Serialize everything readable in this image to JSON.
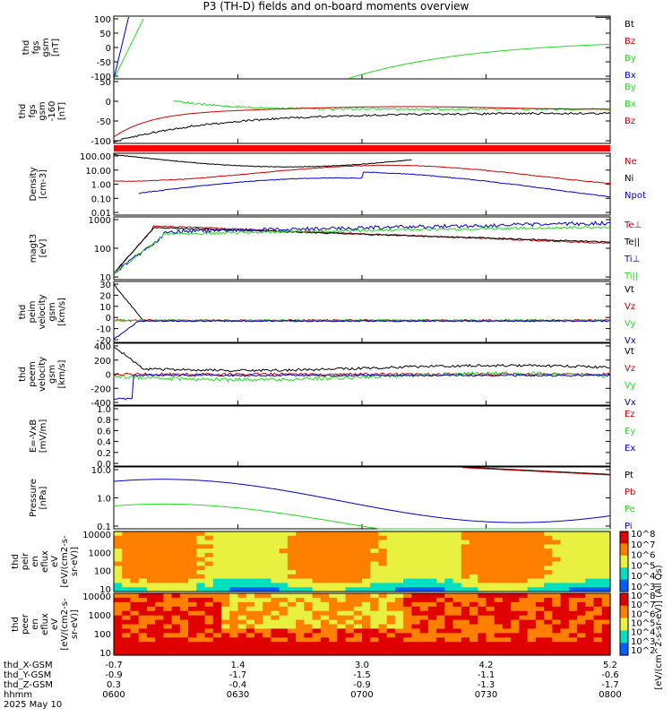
{
  "title": "P3 (TH-D) fields and on-board moments overview",
  "colors": {
    "black": "#000000",
    "red": "#cc0000",
    "green": "#22dd22",
    "blue": "#0000cc",
    "bar": "#ff0000"
  },
  "chart_data": [
    {
      "type": "line",
      "name": "fgs-top",
      "ylabel": [
        "thd",
        "fgs",
        "gsm",
        "[nT]"
      ],
      "ylim": [
        -100,
        100
      ],
      "yticks": [
        "100",
        "50",
        "0",
        "-50",
        "-100"
      ],
      "series": [
        {
          "name": "Bt",
          "color": "black"
        },
        {
          "name": "Bz",
          "color": "red"
        },
        {
          "name": "By",
          "color": "green"
        },
        {
          "name": "Bx",
          "color": "blue"
        }
      ]
    },
    {
      "type": "line",
      "name": "fgs-bottom",
      "ylabel": [
        "thd",
        "fgs",
        "gsm",
        "-160",
        "[nT]"
      ],
      "ylim": [
        -120,
        60
      ],
      "yticks": [
        "50",
        "0",
        "-50",
        "-100"
      ],
      "series": [
        {
          "name": "By",
          "color": "green"
        },
        {
          "name": "Bx",
          "color": "green"
        },
        {
          "name": "Bz",
          "color": "red"
        }
      ]
    },
    {
      "type": "line",
      "name": "density",
      "log": true,
      "ylabel": [
        "Density",
        "[cm-3]"
      ],
      "ylim": [
        0.005,
        200
      ],
      "yticks": [
        "100.00",
        "10.00",
        "1.00",
        "0.10",
        "0.01"
      ],
      "series": [
        {
          "name": "Ne",
          "color": "red"
        },
        {
          "name": "Ni",
          "color": "black"
        },
        {
          "name": "Npot",
          "color": "blue"
        }
      ]
    },
    {
      "type": "line",
      "name": "temperature",
      "log": true,
      "ylabel": [
        "magt3",
        "[eV]"
      ],
      "ylim": [
        5,
        3000
      ],
      "yticks": [
        "1000",
        "100",
        "10"
      ],
      "series": [
        {
          "name": "Te⊥",
          "color": "red"
        },
        {
          "name": "Te||",
          "color": "black"
        },
        {
          "name": "Ti⊥",
          "color": "blue"
        },
        {
          "name": "Ti||",
          "color": "green"
        }
      ]
    },
    {
      "type": "line",
      "name": "peim-velocity",
      "ylabel": [
        "thd",
        "peim",
        "velocity",
        "gsm",
        "[km/s]"
      ],
      "ylim": [
        -20,
        35
      ],
      "yticks": [
        "30",
        "20",
        "10",
        "0",
        "-10",
        "-20"
      ],
      "series": [
        {
          "name": "Vt",
          "color": "black"
        },
        {
          "name": "Vz",
          "color": "red"
        },
        {
          "name": "Vy",
          "color": "green"
        },
        {
          "name": "Vx",
          "color": "blue"
        }
      ]
    },
    {
      "type": "line",
      "name": "peem-velocity",
      "ylabel": [
        "thd",
        "peem",
        "velocity",
        "gsm",
        "[km/s]"
      ],
      "ylim": [
        -400,
        400
      ],
      "yticks": [
        "400",
        "200",
        "0",
        "-200",
        "-400"
      ],
      "series": [
        {
          "name": "Vt",
          "color": "black"
        },
        {
          "name": "Vz",
          "color": "red"
        },
        {
          "name": "Vy",
          "color": "green"
        },
        {
          "name": "Vx",
          "color": "blue"
        }
      ]
    },
    {
      "type": "line",
      "name": "efield",
      "ylabel": [
        "E=-VxB",
        "[mV/m]"
      ],
      "ylim": [
        0,
        1
      ],
      "yticks": [
        "1.0",
        "0.8",
        "0.6",
        "0.4",
        "0.2",
        "0.0"
      ],
      "series": [
        {
          "name": "Ez",
          "color": "red"
        },
        {
          "name": "Ey",
          "color": "green"
        },
        {
          "name": "Ex",
          "color": "blue"
        }
      ]
    },
    {
      "type": "line",
      "name": "pressure",
      "log": true,
      "ylabel": [
        "Pressure",
        "[nPa]"
      ],
      "ylim": [
        0.05,
        20
      ],
      "yticks": [
        "10.0",
        "1.0",
        "0.1"
      ],
      "series": [
        {
          "name": "Pt",
          "color": "black"
        },
        {
          "name": "Pb",
          "color": "red"
        },
        {
          "name": "Pe",
          "color": "green"
        },
        {
          "name": "Pi",
          "color": "blue"
        }
      ]
    },
    {
      "type": "heatmap",
      "name": "peir-spectrogram",
      "log": true,
      "ylabel": [
        "thd",
        "peir",
        "en",
        "eflux",
        "eV",
        "[eV/(cm2-s-",
        "sr-eV)]"
      ],
      "ylim": [
        7,
        20000
      ],
      "yticks": [
        "10000",
        "1000",
        "100",
        "10"
      ],
      "colorbar": {
        "labels": [
          "10^8",
          "10^7",
          "10^6",
          "10^5",
          "10^4",
          "10^3"
        ]
      }
    },
    {
      "type": "heatmap",
      "name": "peer-spectrogram",
      "log": true,
      "ylabel": [
        "thd",
        "peer",
        "en",
        "eflux",
        "eV",
        "[eV/(cm2-s-",
        "sr-eV)]"
      ],
      "ylim": [
        7,
        20000
      ],
      "yticks": [
        "10000",
        "1000",
        "100",
        "10"
      ],
      "colorbar": {
        "labels": [
          "10^8",
          "10^7",
          "10^6",
          "10^5",
          "10^4",
          "10^3",
          "10^2"
        ],
        "title": "[eV/(cm^2-s-sr-eV)] (All Qs)"
      }
    }
  ],
  "x_axis": {
    "rows": [
      {
        "label": "thd_X-GSM",
        "values": [
          "-0.7",
          "1.4",
          "3.0",
          "4.2",
          "5.2"
        ]
      },
      {
        "label": "thd_Y-GSM",
        "values": [
          "-0.9",
          "-1.7",
          "-1.5",
          "-1.1",
          "-0.6"
        ]
      },
      {
        "label": "thd_Z-GSM",
        "values": [
          "0.3",
          "-0.4",
          "-0.9",
          "-1.3",
          "-1.7"
        ]
      },
      {
        "label": "hhmm",
        "values": [
          "0600",
          "0630",
          "0700",
          "0730",
          "0800"
        ]
      }
    ],
    "date": "2025 May 10"
  }
}
